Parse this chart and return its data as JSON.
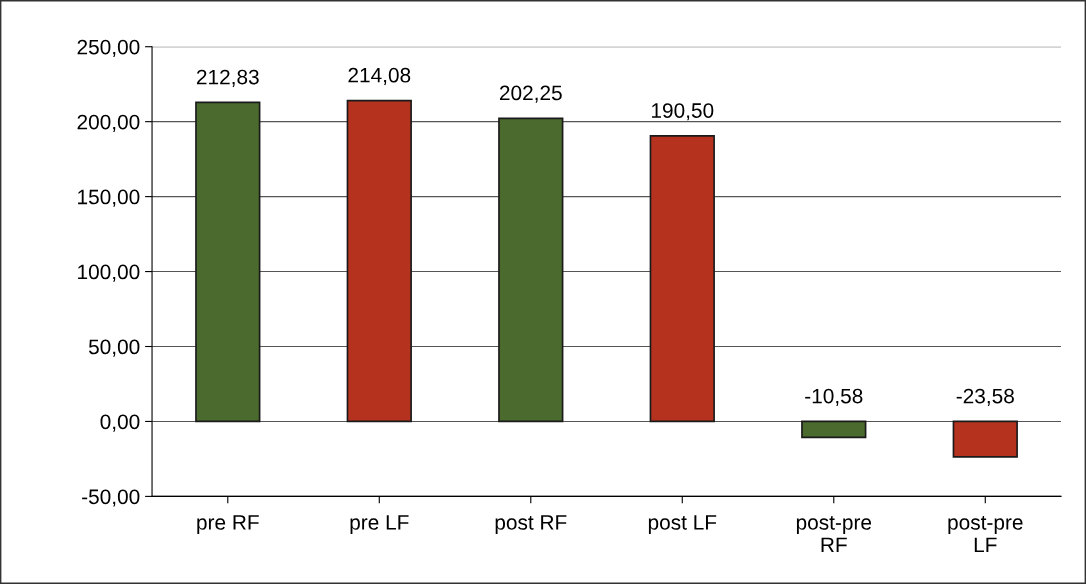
{
  "chart_data": {
    "type": "bar",
    "categories": [
      "pre RF",
      "pre LF",
      "post RF",
      "post LF",
      "post-pre RF",
      "post-pre LF"
    ],
    "values": [
      212.83,
      214.08,
      202.25,
      190.5,
      -10.58,
      -23.58
    ],
    "colors": [
      "#4a6a2e",
      "#b5321f",
      "#4a6a2e",
      "#b5321f",
      "#4a6a2e",
      "#b5321f"
    ],
    "value_labels": [
      "212,83",
      "214,08",
      "202,25",
      "190,50",
      "-10,58",
      "-23,58"
    ],
    "ylim": [
      -50,
      250
    ],
    "yticks": [
      {
        "value": -50,
        "label": "-50,00"
      },
      {
        "value": 0,
        "label": "0,00"
      },
      {
        "value": 50,
        "label": "50,00"
      },
      {
        "value": 100,
        "label": "100,00"
      },
      {
        "value": 150,
        "label": "150,00"
      },
      {
        "value": 200,
        "label": "200,00"
      },
      {
        "value": 250,
        "label": "250,00"
      }
    ],
    "grid": "y",
    "legend": false
  }
}
